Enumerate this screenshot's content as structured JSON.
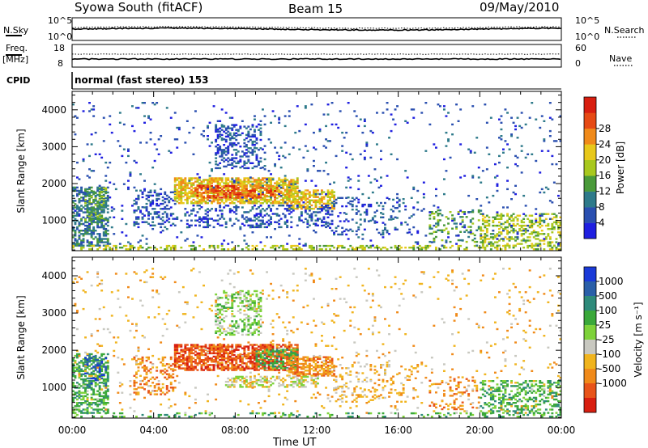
{
  "header": {
    "station": "Syowa South (fitACF)",
    "beam": "Beam 15",
    "date": "09/May/2010"
  },
  "status_panel": {
    "nsky_label": "N.Sky",
    "nsearch_label": "N.Search",
    "nsky_ticks": [
      "10^5",
      "10^0"
    ],
    "nsky_right_ticks": [
      "10^5",
      "10^0"
    ],
    "freq_label": "Freq.",
    "freq_unit": "[MHz]",
    "freq_ticks": [
      "18",
      "8"
    ],
    "nave_label": "Nave",
    "nave_ticks": [
      "60",
      "0"
    ],
    "cpid_label": "CPID",
    "cpid_text": "normal (fast stereo) 153"
  },
  "chart_data": [
    {
      "type": "heatmap",
      "name": "power",
      "xlabel": "",
      "ylabel": "Slant Range [km]",
      "x_range_hours": [
        0,
        24
      ],
      "ylim": [
        180,
        4500
      ],
      "y_ticks": [
        1000,
        2000,
        3000,
        4000
      ],
      "colorbar": {
        "label": "Power [dB]",
        "ticks": [
          "4",
          "8",
          "12",
          "16",
          "20",
          "24",
          "28"
        ],
        "colors": [
          "#1f1fe0",
          "#2a4fb0",
          "#2e7a8a",
          "#4a9a3a",
          "#a8c81e",
          "#e8c81a",
          "#f08a1a",
          "#e64a14",
          "#d81e10"
        ]
      },
      "regions": [
        {
          "t0": 0.0,
          "t1": 1.8,
          "r0": 300,
          "r1": 1900,
          "level": 2,
          "density": 0.5
        },
        {
          "t0": 0.6,
          "t1": 1.7,
          "r0": 1000,
          "r1": 1900,
          "level": 3,
          "density": 0.35
        },
        {
          "t0": 3.0,
          "t1": 5.0,
          "r0": 800,
          "r1": 1800,
          "level": 1,
          "density": 0.3
        },
        {
          "t0": 5.0,
          "t1": 11.0,
          "r0": 1450,
          "r1": 2150,
          "level": 5,
          "density": 0.7
        },
        {
          "t0": 6.0,
          "t1": 10.0,
          "r0": 1600,
          "r1": 1950,
          "level": 7,
          "density": 0.5
        },
        {
          "t0": 7.0,
          "t1": 9.2,
          "r0": 2400,
          "r1": 3600,
          "level": 1,
          "density": 0.35
        },
        {
          "t0": 10.5,
          "t1": 12.8,
          "r0": 1300,
          "r1": 1800,
          "level": 5,
          "density": 0.6
        },
        {
          "t0": 5.5,
          "t1": 12.5,
          "r0": 800,
          "r1": 1400,
          "level": 1,
          "density": 0.25
        },
        {
          "t0": 12.5,
          "t1": 17.0,
          "r0": 600,
          "r1": 1600,
          "level": 1,
          "density": 0.15
        },
        {
          "t0": 17.5,
          "t1": 20.0,
          "r0": 400,
          "r1": 1300,
          "level": 3,
          "density": 0.2
        },
        {
          "t0": 20.0,
          "t1": 24.0,
          "r0": 300,
          "r1": 1200,
          "level": 4,
          "density": 0.35
        },
        {
          "t0": 0.0,
          "t1": 24.0,
          "r0": 200,
          "r1": 330,
          "level": 4,
          "density": 0.35
        },
        {
          "t0": 0.0,
          "t1": 24.0,
          "r0": 300,
          "r1": 4200,
          "level": 1,
          "density": 0.03
        }
      ]
    },
    {
      "type": "heatmap",
      "name": "velocity",
      "xlabel": "Time UT",
      "ylabel": "Slant Range [km]",
      "x_range_hours": [
        0,
        24
      ],
      "x_ticks": [
        "00:00",
        "04:00",
        "08:00",
        "12:00",
        "16:00",
        "20:00",
        "00:00"
      ],
      "ylim": [
        180,
        4500
      ],
      "y_ticks": [
        1000,
        2000,
        3000,
        4000
      ],
      "colorbar": {
        "label": "Velocity [m s⁻¹]",
        "ticks": [
          "1000",
          "500",
          "100",
          "25",
          "-25",
          "-100",
          "-500",
          "-1000"
        ],
        "colors": [
          "#1a3ad8",
          "#2a5fa8",
          "#2e8a7a",
          "#3aa83a",
          "#7ed23a",
          "#c8c8c0",
          "#f0b41e",
          "#f08a1a",
          "#e8541a",
          "#d81e10"
        ]
      },
      "regions": [
        {
          "t0": 0.0,
          "t1": 1.8,
          "r0": 300,
          "r1": 1900,
          "level": 3,
          "density": 0.5
        },
        {
          "t0": 0.6,
          "t1": 1.7,
          "r0": 1000,
          "r1": 1900,
          "level": 1,
          "density": 0.3
        },
        {
          "t0": 3.0,
          "t1": 5.0,
          "r0": 800,
          "r1": 1800,
          "level": 7,
          "density": 0.3
        },
        {
          "t0": 5.0,
          "t1": 11.0,
          "r0": 1450,
          "r1": 2150,
          "level": 8,
          "density": 0.7
        },
        {
          "t0": 9.0,
          "t1": 11.0,
          "r0": 1500,
          "r1": 2000,
          "level": 3,
          "density": 0.5
        },
        {
          "t0": 7.0,
          "t1": 9.2,
          "r0": 2400,
          "r1": 3600,
          "level": 4,
          "density": 0.35
        },
        {
          "t0": 10.5,
          "t1": 12.8,
          "r0": 1300,
          "r1": 1800,
          "level": 7,
          "density": 0.6
        },
        {
          "t0": 7.5,
          "t1": 12.0,
          "r0": 1000,
          "r1": 1300,
          "level": 5,
          "density": 0.4
        },
        {
          "t0": 12.5,
          "t1": 17.0,
          "r0": 600,
          "r1": 1600,
          "level": 6,
          "density": 0.15
        },
        {
          "t0": 17.5,
          "t1": 20.0,
          "r0": 400,
          "r1": 1300,
          "level": 7,
          "density": 0.2
        },
        {
          "t0": 20.0,
          "t1": 24.0,
          "r0": 300,
          "r1": 1200,
          "level": 3,
          "density": 0.35
        },
        {
          "t0": 0.0,
          "t1": 24.0,
          "r0": 200,
          "r1": 330,
          "level": 3,
          "density": 0.2
        },
        {
          "t0": 0.0,
          "t1": 24.0,
          "r0": 300,
          "r1": 4200,
          "level": 6,
          "density": 0.03
        }
      ]
    }
  ]
}
